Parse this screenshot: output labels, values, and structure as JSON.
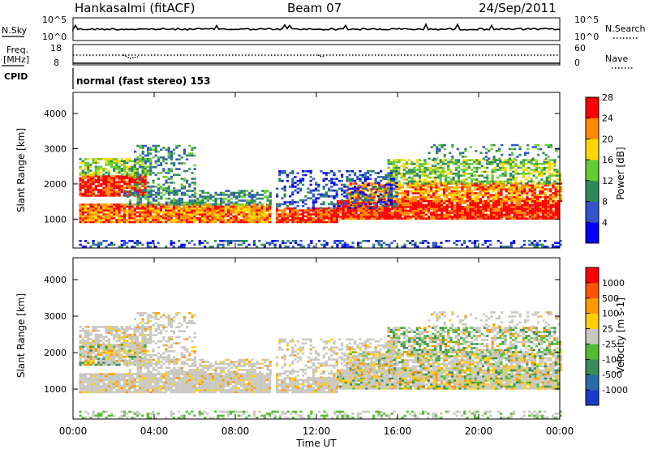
{
  "header": {
    "station": "Hankasalmi (fitACF)",
    "beam": "Beam 07",
    "date": "24/Sep/2011"
  },
  "nsky_panel": {
    "left_label": "N.Sky",
    "right_label": "N.Search",
    "left_ticks": [
      "10^5",
      "10^0"
    ],
    "right_ticks": [
      "10^5",
      "10^0"
    ]
  },
  "freq_panel": {
    "left_label_1": "Freq.",
    "left_label_2": "[MHz]",
    "right_label": "Nave",
    "left_ticks": [
      "18",
      "8"
    ],
    "right_ticks": [
      "60",
      "0"
    ]
  },
  "cpid": {
    "label": "CPID",
    "mode": "normal (fast stereo) 153"
  },
  "chart_data": [
    {
      "type": "heatmap",
      "name": "Power",
      "ylabel": "Slant Range [km]",
      "xlabel": "",
      "yticks": [
        1000,
        2000,
        3000,
        4000
      ],
      "ylim": [
        180,
        4600
      ],
      "colorbar_label": "Power [dB]",
      "colorbar_ticks": [
        4,
        8,
        12,
        16,
        20,
        24,
        28
      ],
      "colorbar_colors": [
        "#0000ff",
        "#3355cc",
        "#2e8b57",
        "#66cc33",
        "#ffd700",
        "#ff8c00",
        "#ff0000"
      ]
    },
    {
      "type": "heatmap",
      "name": "Velocity",
      "ylabel": "Slant Range [km]",
      "xlabel": "Time UT",
      "yticks": [
        1000,
        2000,
        3000,
        4000
      ],
      "ylim": [
        180,
        4600
      ],
      "xticks": [
        "00:00",
        "04:00",
        "08:00",
        "12:00",
        "16:00",
        "20:00",
        "00:00"
      ],
      "colorbar_label": "Velocity [m s-1]",
      "colorbar_ticks": [
        "1000",
        "500",
        "100",
        "25",
        "-25",
        "-100",
        "-500",
        "-1000"
      ],
      "colorbar_colors": [
        "#1a3ccc",
        "#2a6aa8",
        "#3a8a5a",
        "#55bb33",
        "#c8c8c0",
        "#ffd000",
        "#ff9900",
        "#ff5500",
        "#ff0000"
      ]
    }
  ]
}
